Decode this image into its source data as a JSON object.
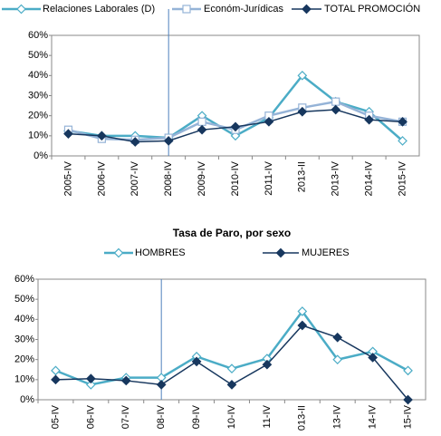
{
  "chart_data": [
    {
      "type": "line",
      "categories": [
        "2005-IV",
        "2006-IV",
        "2007-IV",
        "2008-IV",
        "2009-IV",
        "2010-IV",
        "2011-IV",
        "2013-II",
        "2013-IV",
        "2014-IV",
        "2015-IV"
      ],
      "series": [
        {
          "name": "Relaciones Laborales (D)",
          "color": "#4bacc6",
          "marker": "diamond",
          "values": [
            12.5,
            10,
            10,
            9,
            20,
            10,
            19,
            40,
            27,
            22,
            7.5
          ]
        },
        {
          "name": "Económ-Jurídicas",
          "color": "#95b3d7",
          "marker": "square",
          "values": [
            13,
            8.5,
            8,
            9,
            17,
            13,
            20,
            24,
            27,
            20,
            17
          ]
        },
        {
          "name": "TOTAL PROMOCIÓN",
          "color": "#17375e",
          "marker": "diamond",
          "values": [
            11,
            10,
            7,
            7.5,
            13,
            14.5,
            17,
            22,
            23,
            18,
            17
          ]
        }
      ],
      "ylim": [
        0,
        60
      ],
      "yticks": [
        {
          "value": 0,
          "label": "0%"
        },
        {
          "value": 10,
          "label": "10%"
        },
        {
          "value": 20,
          "label": "20%"
        },
        {
          "value": 30,
          "label": "30%"
        },
        {
          "value": 40,
          "label": "40%"
        },
        {
          "value": 50,
          "label": "50%"
        },
        {
          "value": 60,
          "label": "60%"
        }
      ],
      "grid": false
    },
    {
      "type": "line",
      "title": "Tasa de Paro, por sexo",
      "categories": [
        "05-IV",
        "06-IV",
        "07-IV",
        "08-IV",
        "09-IV",
        "10-IV",
        "11-IV",
        "013-II",
        "13-IV",
        "14-IV",
        "15-IV"
      ],
      "series": [
        {
          "name": "HOMBRES",
          "color": "#4bacc6",
          "marker": "diamond",
          "values": [
            14.5,
            7.5,
            11,
            11,
            21.5,
            15.5,
            20.5,
            44,
            20,
            24,
            14.5
          ]
        },
        {
          "name": "MUJERES",
          "color": "#17375e",
          "marker": "diamond",
          "values": [
            10,
            10.5,
            9.5,
            7.5,
            19,
            7.5,
            17.5,
            37,
            31,
            21,
            0
          ]
        }
      ],
      "ylim": [
        0,
        60
      ],
      "yticks": [
        {
          "value": 0,
          "label": "0%"
        },
        {
          "value": 10,
          "label": "10%"
        },
        {
          "value": 20,
          "label": "20%"
        },
        {
          "value": 30,
          "label": "30%"
        },
        {
          "value": 40,
          "label": "40%"
        },
        {
          "value": 50,
          "label": "50%"
        },
        {
          "value": 60,
          "label": "60%"
        }
      ],
      "grid": false
    }
  ]
}
